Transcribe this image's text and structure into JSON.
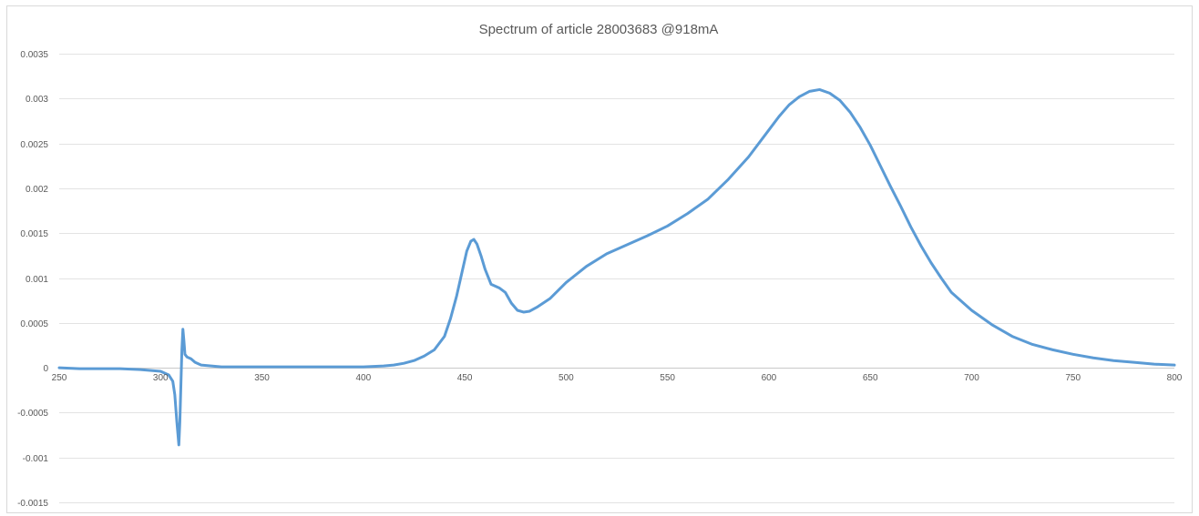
{
  "chart_data": {
    "type": "line",
    "title": "Spectrum of article 28003683   @918mA",
    "xlabel": "",
    "ylabel": "",
    "xlim": [
      250,
      800
    ],
    "ylim": [
      -0.0015,
      0.0035
    ],
    "grid": true,
    "legend": "none",
    "x_ticks": [
      {
        "value": 250,
        "label": "250"
      },
      {
        "value": 300,
        "label": "300"
      },
      {
        "value": 350,
        "label": "350"
      },
      {
        "value": 400,
        "label": "400"
      },
      {
        "value": 450,
        "label": "450"
      },
      {
        "value": 500,
        "label": "500"
      },
      {
        "value": 550,
        "label": "550"
      },
      {
        "value": 600,
        "label": "600"
      },
      {
        "value": 650,
        "label": "650"
      },
      {
        "value": 700,
        "label": "700"
      },
      {
        "value": 750,
        "label": "750"
      },
      {
        "value": 800,
        "label": "800"
      }
    ],
    "y_ticks": [
      {
        "value": 0.0035,
        "label": "0.0035"
      },
      {
        "value": 0.003,
        "label": "0.003"
      },
      {
        "value": 0.0025,
        "label": "0.0025"
      },
      {
        "value": 0.002,
        "label": "0.002"
      },
      {
        "value": 0.0015,
        "label": "0.0015"
      },
      {
        "value": 0.001,
        "label": "0.001"
      },
      {
        "value": 0.0005,
        "label": "0.0005"
      },
      {
        "value": 0,
        "label": "0"
      },
      {
        "value": -0.0005,
        "label": "-0.0005"
      },
      {
        "value": -0.001,
        "label": "-0.001"
      },
      {
        "value": -0.0015,
        "label": "-0.0015"
      }
    ],
    "series": [
      {
        "color": "#5b9bd5",
        "points": [
          [
            250,
            0.0
          ],
          [
            260,
            -1e-05
          ],
          [
            270,
            -1e-05
          ],
          [
            280,
            -1e-05
          ],
          [
            290,
            -2e-05
          ],
          [
            300,
            -4e-05
          ],
          [
            304,
            -8e-05
          ],
          [
            306,
            -0.00015
          ],
          [
            307,
            -0.0003
          ],
          [
            308,
            -0.0006
          ],
          [
            309,
            -0.00086
          ],
          [
            309.5,
            -0.0006
          ],
          [
            310,
            -0.0002
          ],
          [
            310.5,
            0.0002
          ],
          [
            311,
            0.00043
          ],
          [
            311.5,
            0.0003
          ],
          [
            312,
            0.00015
          ],
          [
            313,
            0.00012
          ],
          [
            315,
            0.0001
          ],
          [
            317,
            6e-05
          ],
          [
            320,
            3e-05
          ],
          [
            330,
            1e-05
          ],
          [
            340,
            1e-05
          ],
          [
            350,
            1e-05
          ],
          [
            360,
            1e-05
          ],
          [
            370,
            1e-05
          ],
          [
            380,
            1e-05
          ],
          [
            390,
            1e-05
          ],
          [
            400,
            1e-05
          ],
          [
            410,
            2e-05
          ],
          [
            415,
            3e-05
          ],
          [
            420,
            5e-05
          ],
          [
            425,
            8e-05
          ],
          [
            430,
            0.00013
          ],
          [
            435,
            0.0002
          ],
          [
            440,
            0.00035
          ],
          [
            443,
            0.00055
          ],
          [
            446,
            0.0008
          ],
          [
            449,
            0.0011
          ],
          [
            451,
            0.0013
          ],
          [
            453,
            0.00141
          ],
          [
            454.5,
            0.00143
          ],
          [
            456,
            0.00138
          ],
          [
            458,
            0.00125
          ],
          [
            460,
            0.0011
          ],
          [
            463,
            0.00093
          ],
          [
            467,
            0.00089
          ],
          [
            470,
            0.00084
          ],
          [
            473,
            0.00072
          ],
          [
            476,
            0.00064
          ],
          [
            479,
            0.00062
          ],
          [
            482,
            0.00063
          ],
          [
            486,
            0.00068
          ],
          [
            492,
            0.00077
          ],
          [
            500,
            0.00095
          ],
          [
            510,
            0.00113
          ],
          [
            520,
            0.00127
          ],
          [
            530,
            0.00137
          ],
          [
            540,
            0.00147
          ],
          [
            550,
            0.00158
          ],
          [
            560,
            0.00172
          ],
          [
            570,
            0.00188
          ],
          [
            580,
            0.0021
          ],
          [
            590,
            0.00235
          ],
          [
            600,
            0.00265
          ],
          [
            605,
            0.0028
          ],
          [
            610,
            0.00293
          ],
          [
            615,
            0.00302
          ],
          [
            620,
            0.00308
          ],
          [
            625,
            0.0031
          ],
          [
            630,
            0.00306
          ],
          [
            635,
            0.00298
          ],
          [
            640,
            0.00285
          ],
          [
            645,
            0.00268
          ],
          [
            650,
            0.00248
          ],
          [
            655,
            0.00225
          ],
          [
            660,
            0.00202
          ],
          [
            665,
            0.0018
          ],
          [
            670,
            0.00157
          ],
          [
            675,
            0.00136
          ],
          [
            680,
            0.00117
          ],
          [
            685,
            0.001
          ],
          [
            690,
            0.00084
          ],
          [
            700,
            0.00064
          ],
          [
            710,
            0.00048
          ],
          [
            720,
            0.00035
          ],
          [
            730,
            0.00026
          ],
          [
            740,
            0.0002
          ],
          [
            750,
            0.00015
          ],
          [
            760,
            0.00011
          ],
          [
            770,
            8e-05
          ],
          [
            780,
            6e-05
          ],
          [
            790,
            4e-05
          ],
          [
            800,
            3e-05
          ]
        ]
      }
    ]
  }
}
